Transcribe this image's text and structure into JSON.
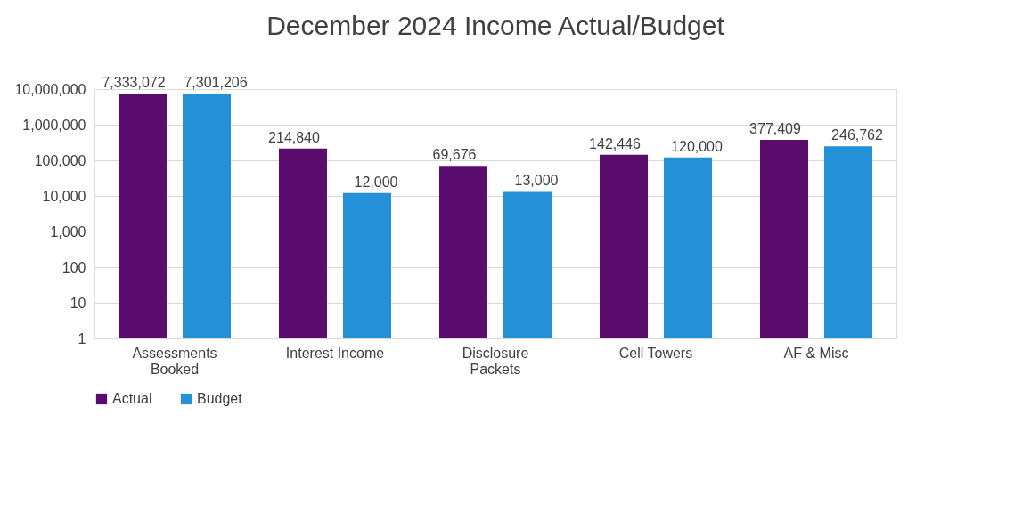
{
  "chart_data": {
    "type": "bar",
    "title": "December  2024 Income Actual/Budget",
    "categories": [
      "Assessments Booked",
      "Interest Income",
      "Disclosure Packets",
      "Cell Towers",
      "AF & Misc"
    ],
    "series": [
      {
        "name": "Actual",
        "color": "#590c6b",
        "values": [
          7333072,
          214840,
          69676,
          142446,
          377409
        ],
        "value_labels": [
          "7,333,072",
          "214,840",
          "69,676",
          "142,446",
          "377,409"
        ]
      },
      {
        "name": "Budget",
        "color": "#2490d8",
        "values": [
          7301206,
          12000,
          13000,
          120000,
          246762
        ],
        "value_labels": [
          "7,301,206",
          "12,000",
          "13,000",
          "120,000",
          "246,762"
        ]
      }
    ],
    "log": "y",
    "ylim": [
      1,
      10000000
    ],
    "yticks": [
      {
        "value": 1,
        "label": "1"
      },
      {
        "value": 10,
        "label": "10"
      },
      {
        "value": 100,
        "label": "100"
      },
      {
        "value": 1000,
        "label": "1,000"
      },
      {
        "value": 10000,
        "label": "10,000"
      },
      {
        "value": 100000,
        "label": "100,000"
      },
      {
        "value": 1000000,
        "label": "1,000,000"
      },
      {
        "value": 10000000,
        "label": "10,000,000"
      }
    ],
    "grid": "y",
    "legend": "bottom"
  }
}
